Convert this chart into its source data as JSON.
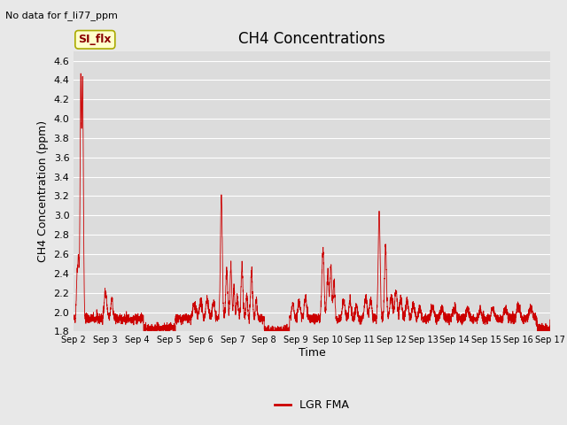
{
  "title": "CH4 Concentrations",
  "xlabel": "Time",
  "ylabel": "CH4 Concentration (ppm)",
  "top_left_text": "No data for f_li77_ppm",
  "legend_label": "LGR FMA",
  "legend_box_label": "SI_flx",
  "ylim": [
    1.8,
    4.7
  ],
  "yticks": [
    1.8,
    2.0,
    2.2,
    2.4,
    2.6,
    2.8,
    3.0,
    3.2,
    3.4,
    3.6,
    3.8,
    4.0,
    4.2,
    4.4,
    4.6
  ],
  "x_tick_labels": [
    "Sep 2",
    "Sep 3",
    "Sep 4",
    "Sep 5",
    "Sep 6",
    "Sep 7",
    "Sep 8",
    "Sep 9",
    "Sep 10",
    "Sep 11",
    "Sep 12",
    "Sep 13",
    "Sep 14",
    "Sep 15",
    "Sep 16",
    "Sep 17"
  ],
  "line_color": "#cc0000",
  "background_color": "#e8e8e8",
  "plot_bg_color": "#dcdcdc",
  "grid_color": "#ffffff",
  "title_fontsize": 12,
  "axis_label_fontsize": 9,
  "tick_fontsize": 8,
  "legend_box_bg": "#ffffcc",
  "legend_box_border": "#aaaa00"
}
